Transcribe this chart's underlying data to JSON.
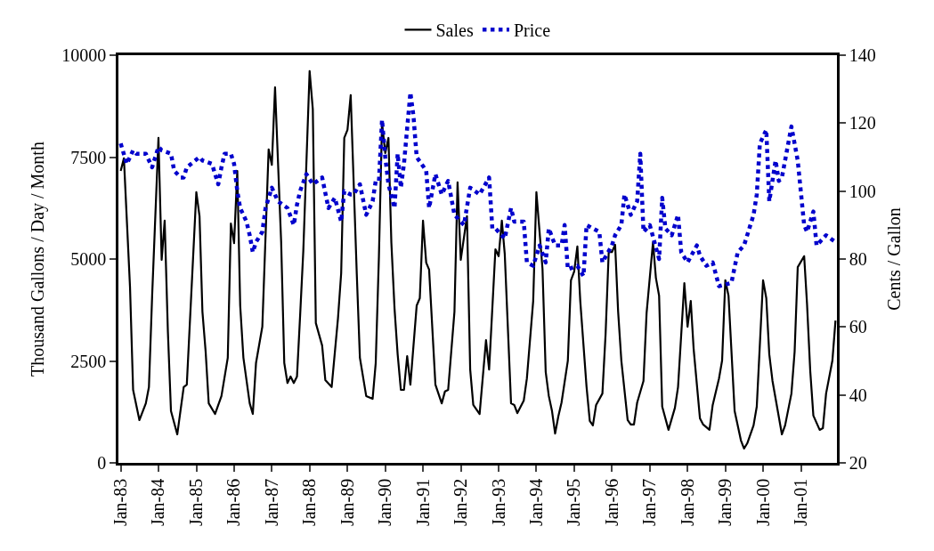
{
  "chart_data": {
    "type": "line",
    "ylabel": "Thousand Gallons / Day / Month",
    "y2label": "Cents / Gallon",
    "legend": "top",
    "marker": "none",
    "xlim": [
      "1982-12-10",
      "2001-12-15"
    ],
    "xticks": [
      {
        "value": "1983-01",
        "label": "Jan-83"
      },
      {
        "value": "1984-01",
        "label": "Jan-84"
      },
      {
        "value": "1985-01",
        "label": "Jan-85"
      },
      {
        "value": "1986-01",
        "label": "Jan-86"
      },
      {
        "value": "1987-01",
        "label": "Jan-87"
      },
      {
        "value": "1988-01",
        "label": "Jan-88"
      },
      {
        "value": "1989-01",
        "label": "Jan-89"
      },
      {
        "value": "1990-01",
        "label": "Jan-90"
      },
      {
        "value": "1991-01",
        "label": "Jan-91"
      },
      {
        "value": "1992-01",
        "label": "Jan-92"
      },
      {
        "value": "1993-01",
        "label": "Jan-93"
      },
      {
        "value": "1994-01",
        "label": "Jan-94"
      },
      {
        "value": "1995-01",
        "label": "Jan-95"
      },
      {
        "value": "1996-01",
        "label": "Jan-96"
      },
      {
        "value": "1997-01",
        "label": "Jan-97"
      },
      {
        "value": "1998-01",
        "label": "Jan-98"
      },
      {
        "value": "1999-01",
        "label": "Jan-99"
      },
      {
        "value": "2000-01",
        "label": "Jan-00"
      },
      {
        "value": "2001-01",
        "label": "Jan-01"
      }
    ],
    "ylim": [
      0,
      10000
    ],
    "yticks": [
      0,
      2500,
      5000,
      7500,
      10000
    ],
    "y2lim": [
      20,
      140
    ],
    "y2ticks": [
      20,
      40,
      60,
      80,
      100,
      120,
      140
    ],
    "series": [
      {
        "name": "Sales",
        "color": "#000000",
        "line_style": "solid",
        "x": [
          "1983-01",
          "1983-02",
          "1983-04",
          "1983-05",
          "1983-07",
          "1983-09",
          "1983-10",
          "1983-11",
          "1984-01",
          "1984-02",
          "1984-03",
          "1984-04",
          "1984-05",
          "1984-07",
          "1984-09",
          "1984-10",
          "1985-01",
          "1985-02",
          "1985-03",
          "1985-04",
          "1985-05",
          "1985-07",
          "1985-09",
          "1985-11",
          "1985-12",
          "1986-01",
          "1986-02",
          "1986-03",
          "1986-04",
          "1986-06",
          "1986-07",
          "1986-08",
          "1986-10",
          "1986-12",
          "1987-01",
          "1987-02",
          "1987-04",
          "1987-05",
          "1987-06",
          "1987-07",
          "1987-08",
          "1987-09",
          "1987-10",
          "1987-11",
          "1988-01",
          "1988-02",
          "1988-03",
          "1988-05",
          "1988-06",
          "1988-08",
          "1988-10",
          "1988-11",
          "1988-12",
          "1989-01",
          "1989-02",
          "1989-04",
          "1989-05",
          "1989-07",
          "1989-09",
          "1989-10",
          "1989-11",
          "1989-12",
          "1990-01",
          "1990-02",
          "1990-03",
          "1990-04",
          "1990-05",
          "1990-06",
          "1990-07",
          "1990-08",
          "1990-09",
          "1990-11",
          "1990-12",
          "1991-01",
          "1991-02",
          "1991-03",
          "1991-05",
          "1991-07",
          "1991-08",
          "1991-09",
          "1991-10",
          "1991-11",
          "1991-12",
          "1992-01",
          "1992-03",
          "1992-04",
          "1992-05",
          "1992-07",
          "1992-09",
          "1992-10",
          "1992-12",
          "1993-01",
          "1993-02",
          "1993-03",
          "1993-05",
          "1993-06",
          "1993-07",
          "1993-09",
          "1993-10",
          "1993-12",
          "1994-01",
          "1994-03",
          "1994-04",
          "1994-05",
          "1994-06",
          "1994-07",
          "1994-08",
          "1994-09",
          "1994-11",
          "1994-12",
          "1995-01",
          "1995-02",
          "1995-03",
          "1995-05",
          "1995-06",
          "1995-07",
          "1995-08",
          "1995-10",
          "1995-11",
          "1995-12",
          "1996-01",
          "1996-02",
          "1996-03",
          "1996-04",
          "1996-06",
          "1996-07",
          "1996-08",
          "1996-09",
          "1996-11",
          "1996-12",
          "1997-02",
          "1997-03",
          "1997-04",
          "1997-05",
          "1997-07",
          "1997-09",
          "1997-10",
          "1997-12",
          "1998-01",
          "1998-02",
          "1998-03",
          "1998-05",
          "1998-06",
          "1998-08",
          "1998-09",
          "1998-11",
          "1998-12",
          "1999-01",
          "1999-02",
          "1999-04",
          "1999-06",
          "1999-07",
          "1999-08",
          "1999-10",
          "1999-11",
          "2000-01",
          "2000-02",
          "2000-03",
          "2000-04",
          "2000-07",
          "2000-08",
          "2000-10",
          "2000-11",
          "2000-12",
          "2001-02",
          "2001-03",
          "2001-04",
          "2001-05",
          "2001-07",
          "2001-08",
          "2001-09",
          "2001-11",
          "2001-12"
        ],
        "values": [
          7160,
          7470,
          4320,
          1790,
          1050,
          1460,
          1860,
          4100,
          7970,
          4980,
          5940,
          3230,
          1270,
          700,
          1860,
          1920,
          6640,
          6050,
          3710,
          2730,
          1460,
          1200,
          1640,
          2580,
          5870,
          5390,
          7160,
          3860,
          2580,
          1460,
          1200,
          2450,
          3340,
          7690,
          7310,
          9210,
          5410,
          2450,
          1960,
          2120,
          1960,
          2120,
          3600,
          5200,
          9610,
          8670,
          3430,
          2880,
          2030,
          1860,
          3540,
          4650,
          7970,
          8170,
          9020,
          4630,
          2580,
          1640,
          1570,
          2450,
          5070,
          8340,
          7600,
          7970,
          5410,
          3780,
          2660,
          1790,
          1790,
          2620,
          1920,
          3860,
          4040,
          5940,
          4910,
          4740,
          1920,
          1460,
          1750,
          1790,
          2730,
          3710,
          6880,
          4980,
          6050,
          2290,
          1420,
          1200,
          3010,
          2290,
          5240,
          5070,
          5940,
          5130,
          1460,
          1420,
          1220,
          1530,
          2070,
          3970,
          6640,
          4760,
          2230,
          1640,
          1270,
          720,
          1140,
          1480,
          2510,
          4480,
          4690,
          5310,
          3970,
          1860,
          1030,
          920,
          1420,
          1700,
          3170,
          5170,
          5170,
          5350,
          3710,
          2510,
          1050,
          940,
          940,
          1480,
          2010,
          3670,
          5410,
          4540,
          4100,
          1380,
          810,
          1350,
          1860,
          4410,
          3340,
          3970,
          2790,
          1090,
          940,
          810,
          1420,
          2070,
          2510,
          4480,
          4100,
          1270,
          550,
          350,
          480,
          920,
          1380,
          4480,
          4040,
          2660,
          2010,
          700,
          920,
          1700,
          2730,
          4800,
          5070,
          3890,
          2250,
          1160,
          810,
          850,
          1700,
          2510,
          3490
        ]
      },
      {
        "name": "Price",
        "color": "#0000cc",
        "line_style": "dotted",
        "axis": "y2",
        "x": [
          "1983-01",
          "1983-03",
          "1983-05",
          "1983-06",
          "1983-09",
          "1983-11",
          "1984-01",
          "1984-02",
          "1984-05",
          "1984-06",
          "1984-08",
          "1984-09",
          "1984-10",
          "1985-02",
          "1985-03",
          "1985-06",
          "1985-08",
          "1985-09",
          "1985-10",
          "1985-12",
          "1986-01",
          "1986-02",
          "1986-03",
          "1986-05",
          "1986-06",
          "1986-07",
          "1986-08",
          "1986-10",
          "1986-11",
          "1987-01",
          "1987-03",
          "1987-06",
          "1987-08",
          "1987-09",
          "1987-10",
          "1987-12",
          "1988-02",
          "1988-05",
          "1988-07",
          "1988-09",
          "1988-11",
          "1988-12",
          "1989-02",
          "1989-03",
          "1989-05",
          "1989-07",
          "1989-09",
          "1989-10",
          "1989-11",
          "1989-12",
          "1990-01",
          "1990-02",
          "1990-04",
          "1990-05",
          "1990-06",
          "1990-07",
          "1990-09",
          "1990-10",
          "1990-11",
          "1991-02",
          "1991-03",
          "1991-05",
          "1991-07",
          "1991-09",
          "1991-11",
          "1992-02",
          "1992-04",
          "1992-07",
          "1992-10",
          "1992-11",
          "1992-12",
          "1993-03",
          "1993-05",
          "1993-06",
          "1993-09",
          "1993-10",
          "1993-12",
          "1994-02",
          "1994-04",
          "1994-05",
          "1994-07",
          "1994-09",
          "1994-10",
          "1994-11",
          "1995-02",
          "1995-04",
          "1995-05",
          "1995-07",
          "1995-09",
          "1995-10",
          "1996-01",
          "1996-02",
          "1996-04",
          "1996-05",
          "1996-07",
          "1996-09",
          "1996-10",
          "1996-11",
          "1997-01",
          "1997-04",
          "1997-05",
          "1997-06",
          "1997-08",
          "1997-10",
          "1997-11",
          "1998-01",
          "1998-04",
          "1998-05",
          "1998-07",
          "1998-09",
          "1998-11",
          "1999-03",
          "1999-05",
          "1999-07",
          "1999-10",
          "1999-11",
          "1999-12",
          "2000-02",
          "2000-03",
          "2000-05",
          "2000-06",
          "2000-07",
          "2000-10",
          "2000-12",
          "2001-02",
          "2001-03",
          "2001-05",
          "2001-06",
          "2001-09",
          "2001-12"
        ],
        "values": [
          114,
          108,
          112,
          111,
          111,
          107,
          113,
          112,
          111,
          106,
          104,
          104,
          107,
          110,
          109,
          108,
          102,
          107,
          111,
          111,
          108,
          100,
          95,
          91,
          87,
          82,
          85,
          88,
          95,
          101,
          97,
          95,
          90,
          96,
          100,
          105,
          102,
          104,
          95,
          98,
          91,
          100,
          99,
          99,
          102,
          93,
          97,
          103,
          103,
          121,
          110,
          102,
          95,
          111,
          101,
          108,
          129,
          122,
          110,
          106,
          95,
          105,
          99,
          103,
          93,
          90,
          101,
          99,
          104,
          89,
          89,
          86,
          95,
          91,
          91,
          79,
          78,
          84,
          79,
          89,
          84,
          84,
          90,
          77,
          78,
          75,
          90,
          89,
          88,
          79,
          84,
          87,
          90,
          99,
          93,
          97,
          111,
          88,
          90,
          80,
          98,
          89,
          87,
          93,
          82,
          79,
          84,
          81,
          78,
          79,
          72,
          73,
          82,
          84,
          93,
          99,
          114,
          118,
          97,
          109,
          103,
          104,
          119,
          109,
          90,
          88,
          94,
          84,
          87,
          85
        ]
      }
    ]
  }
}
